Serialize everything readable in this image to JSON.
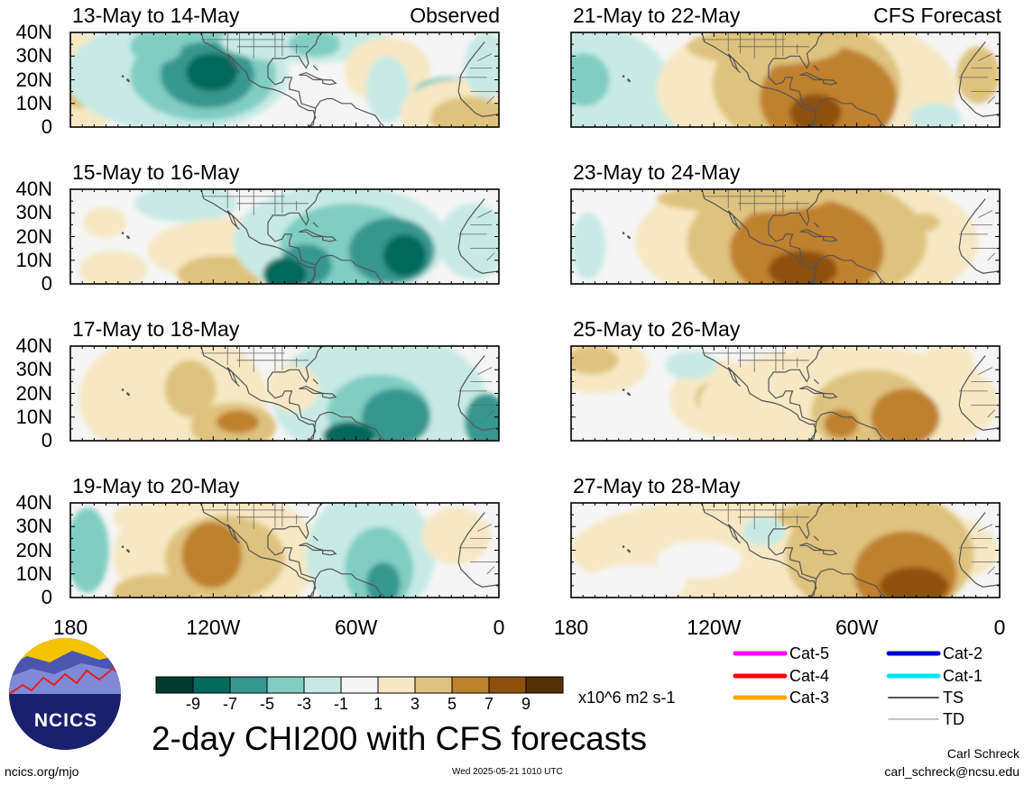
{
  "observed_label": "Observed",
  "forecast_label": "CFS Forecast",
  "panels_left": [
    {
      "title": "13-May to 14-May"
    },
    {
      "title": "15-May to 16-May"
    },
    {
      "title": "17-May to 18-May"
    },
    {
      "title": "19-May to 20-May"
    }
  ],
  "panels_right": [
    {
      "title": "21-May to 22-May"
    },
    {
      "title": "23-May to 24-May"
    },
    {
      "title": "25-May to 26-May"
    },
    {
      "title": "27-May to 28-May"
    }
  ],
  "lat_labels": [
    "40N",
    "30N",
    "20N",
    "10N",
    "0"
  ],
  "lon_labels": [
    "180",
    "120W",
    "60W",
    "0"
  ],
  "colorbar": {
    "ticks": [
      "-9",
      "-7",
      "-5",
      "-3",
      "-1",
      "1",
      "3",
      "5",
      "7",
      "9"
    ],
    "colors": [
      "#003a2c",
      "#00695c",
      "#35978f",
      "#80cdc1",
      "#c7eae5",
      "#f5f5f5",
      "#f6e8c3",
      "#dfc27d",
      "#bf812d",
      "#8c510a",
      "#543005"
    ],
    "units": "x10^6 m2 s-1"
  },
  "legend": {
    "items": [
      {
        "label": "Cat-5",
        "color": "#ff00ff"
      },
      {
        "label": "Cat-4",
        "color": "#ff0000"
      },
      {
        "label": "Cat-3",
        "color": "#ffa500"
      },
      {
        "label": "Cat-2",
        "color": "#0000cc"
      },
      {
        "label": "Cat-1",
        "color": "#00e5ff"
      },
      {
        "label": "TS",
        "color": "#555555"
      },
      {
        "label": "TD",
        "color": "#b0b0b0"
      }
    ]
  },
  "logo_text": "NCICS",
  "main_title": "2-day CHI200 with CFS forecasts",
  "author": "Carl Schreck",
  "email": "carl_schreck@ncsu.edu",
  "site": "ncics.org/mjo",
  "timestamp": "Wed 2025-05-21 1010 UTC"
}
